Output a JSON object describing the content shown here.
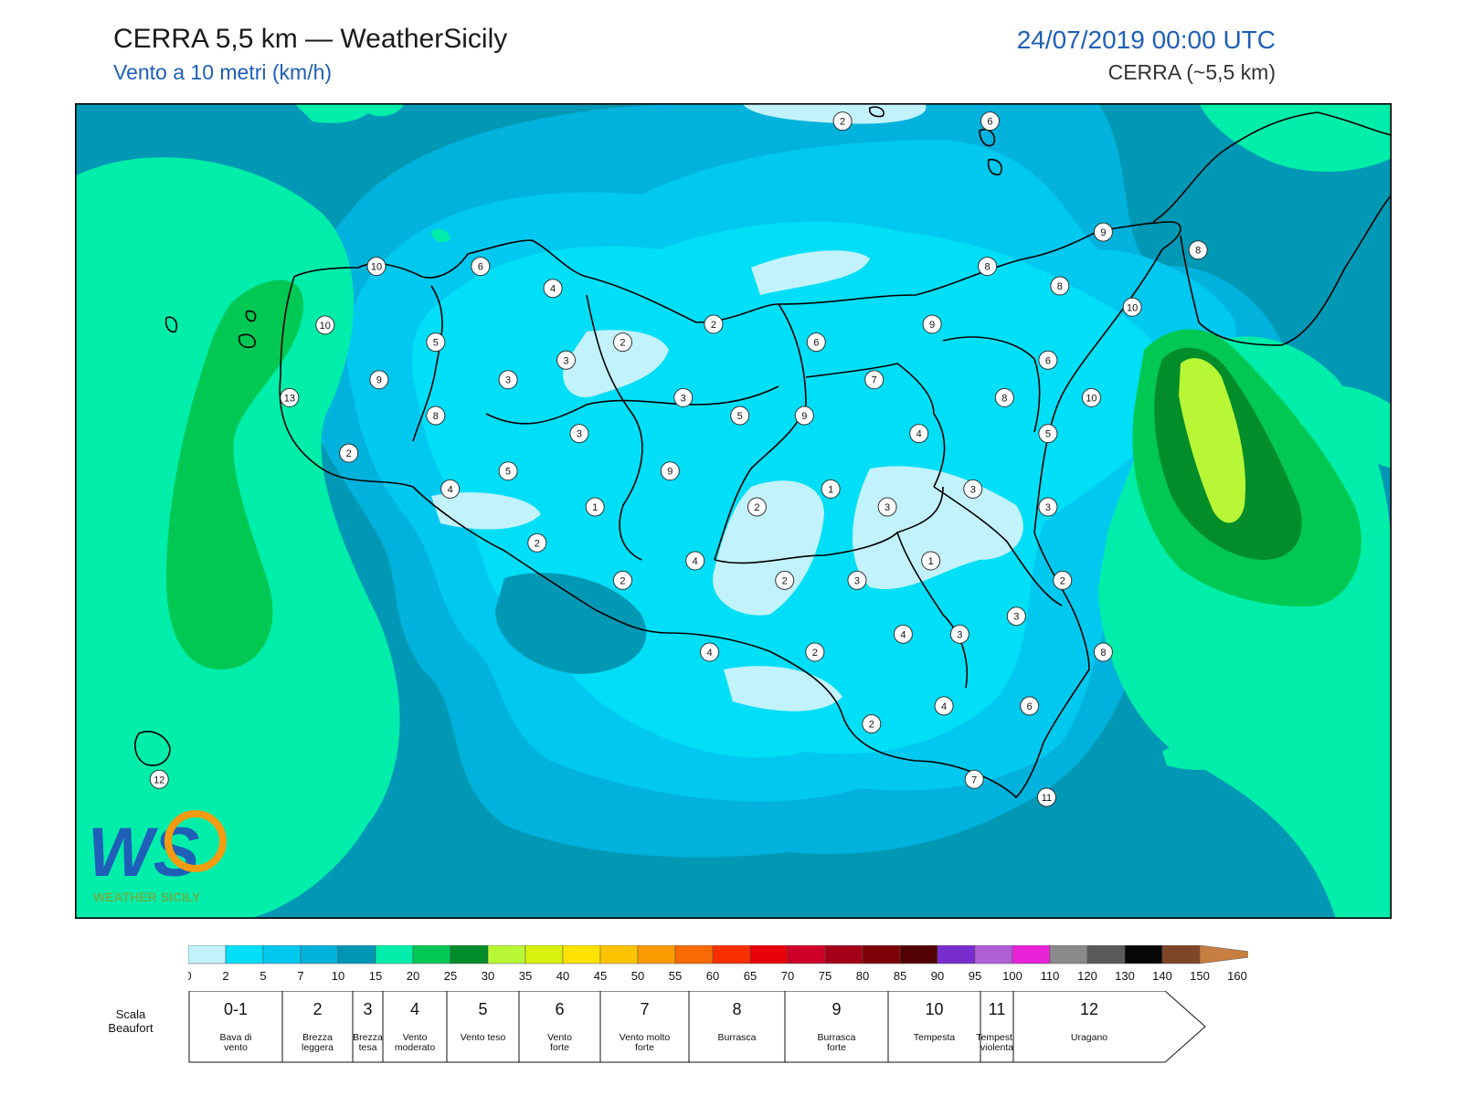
{
  "header": {
    "title": "CERRA 5,5 km — WeatherSicily",
    "subtitle": "Vento a 10 metri (km/h)",
    "datetime": "24/07/2019 00:00 UTC",
    "model": "CERRA (~5,5 km)"
  },
  "logo": {
    "text": "WEATHER SICILY",
    "mark": "WS"
  },
  "station_values": [
    {
      "value": "2",
      "fx": 0.583,
      "fy": 0.022
    },
    {
      "value": "6",
      "fx": 0.695,
      "fy": 0.022
    },
    {
      "value": "9",
      "fx": 0.781,
      "fy": 0.158
    },
    {
      "value": "8",
      "fx": 0.853,
      "fy": 0.18
    },
    {
      "value": "10",
      "fx": 0.229,
      "fy": 0.2
    },
    {
      "value": "6",
      "fx": 0.308,
      "fy": 0.2
    },
    {
      "value": "4",
      "fx": 0.363,
      "fy": 0.227
    },
    {
      "value": "8",
      "fx": 0.693,
      "fy": 0.2
    },
    {
      "value": "8",
      "fx": 0.748,
      "fy": 0.224
    },
    {
      "value": "10",
      "fx": 0.803,
      "fy": 0.25
    },
    {
      "value": "10",
      "fx": 0.19,
      "fy": 0.272
    },
    {
      "value": "2",
      "fx": 0.485,
      "fy": 0.271
    },
    {
      "value": "9",
      "fx": 0.651,
      "fy": 0.271
    },
    {
      "value": "5",
      "fx": 0.274,
      "fy": 0.293
    },
    {
      "value": "2",
      "fx": 0.416,
      "fy": 0.293
    },
    {
      "value": "6",
      "fx": 0.563,
      "fy": 0.293
    },
    {
      "value": "3",
      "fx": 0.373,
      "fy": 0.315
    },
    {
      "value": "6",
      "fx": 0.739,
      "fy": 0.315
    },
    {
      "value": "9",
      "fx": 0.231,
      "fy": 0.339
    },
    {
      "value": "3",
      "fx": 0.329,
      "fy": 0.339
    },
    {
      "value": "7",
      "fx": 0.607,
      "fy": 0.339
    },
    {
      "value": "13",
      "fx": 0.163,
      "fy": 0.361
    },
    {
      "value": "3",
      "fx": 0.462,
      "fy": 0.361
    },
    {
      "value": "8",
      "fx": 0.706,
      "fy": 0.361
    },
    {
      "value": "10",
      "fx": 0.772,
      "fy": 0.361
    },
    {
      "value": "8",
      "fx": 0.274,
      "fy": 0.383
    },
    {
      "value": "5",
      "fx": 0.505,
      "fy": 0.383
    },
    {
      "value": "9",
      "fx": 0.554,
      "fy": 0.383
    },
    {
      "value": "3",
      "fx": 0.383,
      "fy": 0.405
    },
    {
      "value": "4",
      "fx": 0.641,
      "fy": 0.405
    },
    {
      "value": "5",
      "fx": 0.739,
      "fy": 0.405
    },
    {
      "value": "2",
      "fx": 0.208,
      "fy": 0.429
    },
    {
      "value": "5",
      "fx": 0.329,
      "fy": 0.451
    },
    {
      "value": "9",
      "fx": 0.452,
      "fy": 0.451
    },
    {
      "value": "4",
      "fx": 0.285,
      "fy": 0.473
    },
    {
      "value": "1",
      "fx": 0.574,
      "fy": 0.473
    },
    {
      "value": "3",
      "fx": 0.682,
      "fy": 0.473
    },
    {
      "value": "1",
      "fx": 0.395,
      "fy": 0.495
    },
    {
      "value": "2",
      "fx": 0.518,
      "fy": 0.495
    },
    {
      "value": "3",
      "fx": 0.617,
      "fy": 0.495
    },
    {
      "value": "3",
      "fx": 0.739,
      "fy": 0.495
    },
    {
      "value": "2",
      "fx": 0.351,
      "fy": 0.539
    },
    {
      "value": "4",
      "fx": 0.471,
      "fy": 0.561
    },
    {
      "value": "1",
      "fx": 0.65,
      "fy": 0.561
    },
    {
      "value": "2",
      "fx": 0.416,
      "fy": 0.585
    },
    {
      "value": "2",
      "fx": 0.539,
      "fy": 0.585
    },
    {
      "value": "3",
      "fx": 0.594,
      "fy": 0.585
    },
    {
      "value": "2",
      "fx": 0.75,
      "fy": 0.585
    },
    {
      "value": "3",
      "fx": 0.715,
      "fy": 0.629
    },
    {
      "value": "4",
      "fx": 0.629,
      "fy": 0.651
    },
    {
      "value": "3",
      "fx": 0.672,
      "fy": 0.651
    },
    {
      "value": "4",
      "fx": 0.482,
      "fy": 0.673
    },
    {
      "value": "2",
      "fx": 0.562,
      "fy": 0.673
    },
    {
      "value": "8",
      "fx": 0.781,
      "fy": 0.673
    },
    {
      "value": "4",
      "fx": 0.66,
      "fy": 0.739
    },
    {
      "value": "6",
      "fx": 0.725,
      "fy": 0.739
    },
    {
      "value": "2",
      "fx": 0.605,
      "fy": 0.761
    },
    {
      "value": "12",
      "fx": 0.064,
      "fy": 0.829
    },
    {
      "value": "7",
      "fx": 0.683,
      "fy": 0.829
    },
    {
      "value": "11",
      "fx": 0.738,
      "fy": 0.851
    }
  ],
  "colorbar": {
    "ticks": [
      "0",
      "2",
      "5",
      "7",
      "10",
      "15",
      "20",
      "25",
      "30",
      "35",
      "40",
      "45",
      "50",
      "55",
      "60",
      "65",
      "70",
      "75",
      "80",
      "85",
      "90",
      "95",
      "100",
      "110",
      "120",
      "130",
      "140",
      "150",
      "160"
    ],
    "colors": [
      "#c2f2fb",
      "#00dff7",
      "#00c8ee",
      "#00b2dc",
      "#0098b4",
      "#00eea9",
      "#00c853",
      "#008d2a",
      "#b8f736",
      "#d8f20b",
      "#fee300",
      "#fdc301",
      "#fb9b00",
      "#f86a03",
      "#f82f00",
      "#e90008",
      "#cf0029",
      "#a50019",
      "#7d0007",
      "#520002",
      "#7a2dcf",
      "#b05ed6",
      "#e822d6",
      "#8a8a8a",
      "#5a5a5a",
      "#070707",
      "#7e4526",
      "#c77e41"
    ]
  },
  "beaufort": {
    "title_line1": "Scala",
    "title_line2": "Beaufort",
    "classes": [
      {
        "num": "0-1",
        "l1": "Bava di",
        "l2": "vento"
      },
      {
        "num": "2",
        "l1": "Brezza",
        "l2": "leggera"
      },
      {
        "num": "3",
        "l1": "Brezza",
        "l2": "tesa"
      },
      {
        "num": "4",
        "l1": "Vento",
        "l2": "moderato"
      },
      {
        "num": "5",
        "l1": "Vento teso",
        "l2": ""
      },
      {
        "num": "6",
        "l1": "Vento",
        "l2": "forte"
      },
      {
        "num": "7",
        "l1": "Vento molto",
        "l2": "forte"
      },
      {
        "num": "8",
        "l1": "Burrasca",
        "l2": ""
      },
      {
        "num": "9",
        "l1": "Burrasca",
        "l2": "forte"
      },
      {
        "num": "10",
        "l1": "Tempesta",
        "l2": ""
      },
      {
        "num": "11",
        "l1": "Tempesta",
        "l2": "violenta"
      },
      {
        "num": "12",
        "l1": "Uragano",
        "l2": ""
      }
    ]
  }
}
